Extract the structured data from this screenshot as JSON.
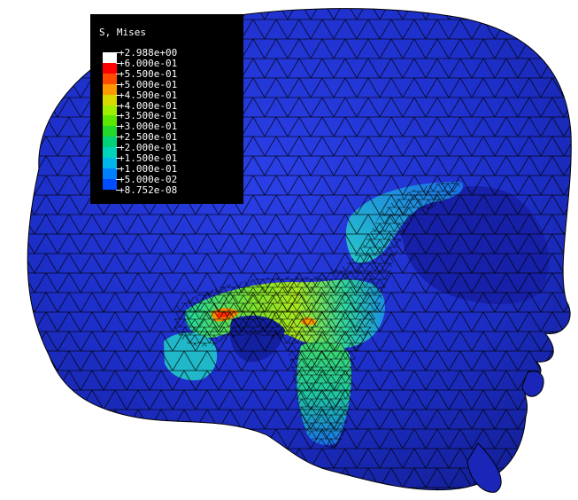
{
  "legend": {
    "title": "S, Mises",
    "entries": [
      {
        "label": "+2.988e+00",
        "color": "#ffffff"
      },
      {
        "label": "+6.000e-01",
        "color": "#ff0000"
      },
      {
        "label": "+5.500e-01",
        "color": "#ff4a00"
      },
      {
        "label": "+5.000e-01",
        "color": "#ff9900"
      },
      {
        "label": "+4.500e-01",
        "color": "#d9d900"
      },
      {
        "label": "+4.000e-01",
        "color": "#9fee00"
      },
      {
        "label": "+3.500e-01",
        "color": "#5ce600"
      },
      {
        "label": "+3.000e-01",
        "color": "#22d82a"
      },
      {
        "label": "+2.500e-01",
        "color": "#00d27a"
      },
      {
        "label": "+2.000e-01",
        "color": "#00d2bc"
      },
      {
        "label": "+1.500e-01",
        "color": "#00b6e8"
      },
      {
        "label": "+1.000e-01",
        "color": "#0080ff"
      },
      {
        "label": "+5.000e-02",
        "color": "#004cff"
      },
      {
        "label": "+8.752e-08",
        "color": "#1010ff"
      }
    ]
  },
  "model": {
    "base_color": "#1c30d4",
    "shade_color": "#1a1fa8",
    "mesh_color": "#000000"
  }
}
